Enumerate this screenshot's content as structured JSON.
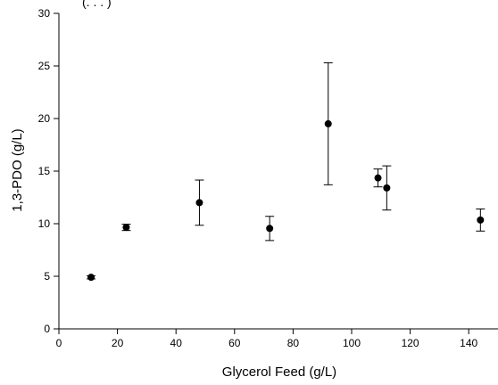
{
  "chart_data": {
    "type": "scatter",
    "title_fragment": "(. . . )",
    "xlabel": "Glycerol Feed (g/L)",
    "ylabel": "1,3-PDO (g/L)",
    "xlim": [
      0,
      150
    ],
    "ylim": [
      0,
      30
    ],
    "xticks": [
      0,
      20,
      40,
      60,
      80,
      100,
      120,
      140
    ],
    "yticks": [
      0,
      5,
      10,
      15,
      20,
      25,
      30
    ],
    "grid": false,
    "legend": "none",
    "marker_color": "#000000",
    "points": [
      {
        "x": 11,
        "y": 4.9,
        "err": 0.15
      },
      {
        "x": 23,
        "y": 9.65,
        "err": 0.3
      },
      {
        "x": 48,
        "y": 12.0,
        "err": 2.15
      },
      {
        "x": 72,
        "y": 9.55,
        "err": 1.15
      },
      {
        "x": 92,
        "y": 19.5,
        "err": 5.8
      },
      {
        "x": 109,
        "y": 14.35,
        "err": 0.85
      },
      {
        "x": 112,
        "y": 13.4,
        "err": 2.1
      },
      {
        "x": 144,
        "y": 10.35,
        "err": 1.05
      }
    ]
  }
}
